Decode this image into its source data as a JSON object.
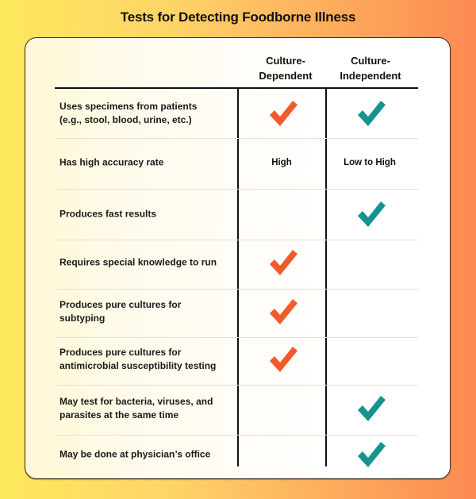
{
  "title": "Tests for Detecting Foodborne Illness",
  "columns": [
    "Culture-\nDependent",
    "Culture-\nIndependent"
  ],
  "column_lines": [
    [
      "Culture-",
      "Dependent"
    ],
    [
      "Culture-",
      "Independent"
    ]
  ],
  "colors": {
    "dependent_check": "#f15a2b",
    "independent_check": "#15938f"
  },
  "rows": [
    {
      "label_lines": [
        "Uses specimens from patients",
        "(e.g., stool, blood, urine, etc.)"
      ],
      "dependent": "check",
      "independent": "check"
    },
    {
      "label_lines": [
        "Has high accuracy rate"
      ],
      "dependent": "High",
      "independent": "Low to High"
    },
    {
      "label_lines": [
        "Produces fast results"
      ],
      "dependent": "",
      "independent": "check"
    },
    {
      "label_lines": [
        "Requires special knowledge to run"
      ],
      "dependent": "check",
      "independent": ""
    },
    {
      "label_lines": [
        "Produces pure cultures for",
        "subtyping"
      ],
      "dependent": "check",
      "independent": ""
    },
    {
      "label_lines": [
        "Produces pure cultures for",
        "antimicrobial susceptibility testing"
      ],
      "dependent": "check",
      "independent": ""
    },
    {
      "label_lines": [
        "May test for bacteria, viruses, and",
        "parasites at the same time"
      ],
      "dependent": "",
      "independent": "check"
    },
    {
      "label_lines": [
        "May be done at physician’s office"
      ],
      "dependent": "",
      "independent": "check"
    }
  ]
}
